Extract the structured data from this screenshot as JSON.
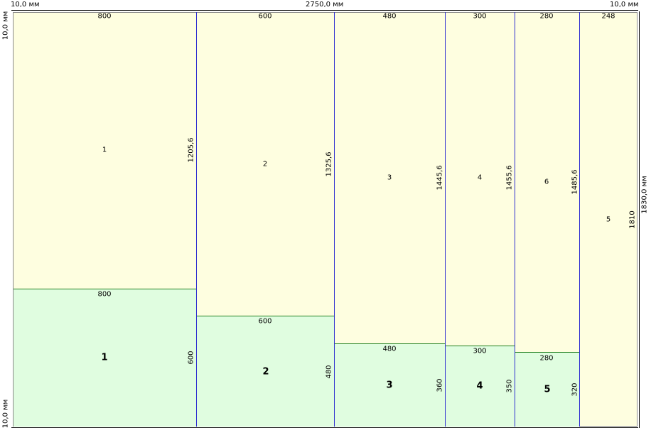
{
  "dims": {
    "top_left": "10,0 мм",
    "top_center": "2750,0 мм",
    "top_right": "10,0 мм",
    "left_top": "10,0 мм",
    "left_bottom": "10,0 мм",
    "right_total": "1830,0 мм"
  },
  "columns": [
    {
      "width": "800",
      "id": "1",
      "height": "1205,6",
      "bottom_width": "800",
      "bottom_id": "1",
      "bottom_height": "600"
    },
    {
      "width": "600",
      "id": "2",
      "height": "1325,6",
      "bottom_width": "600",
      "bottom_id": "2",
      "bottom_height": "480"
    },
    {
      "width": "480",
      "id": "3",
      "height": "1445,6",
      "bottom_width": "480",
      "bottom_id": "3",
      "bottom_height": "360"
    },
    {
      "width": "300",
      "id": "4",
      "height": "1455,6",
      "bottom_width": "300",
      "bottom_id": "4",
      "bottom_height": "350"
    },
    {
      "width": "280",
      "id": "6",
      "height": "1485,6",
      "bottom_width": "280",
      "bottom_id": "5",
      "bottom_height": "320"
    },
    {
      "width": "248",
      "id": "5",
      "height": "1810"
    }
  ],
  "colors": {
    "waste": "#fefee0",
    "part": "#e0fde0",
    "cut_line": "#3030d0",
    "part_border": "#208020"
  }
}
